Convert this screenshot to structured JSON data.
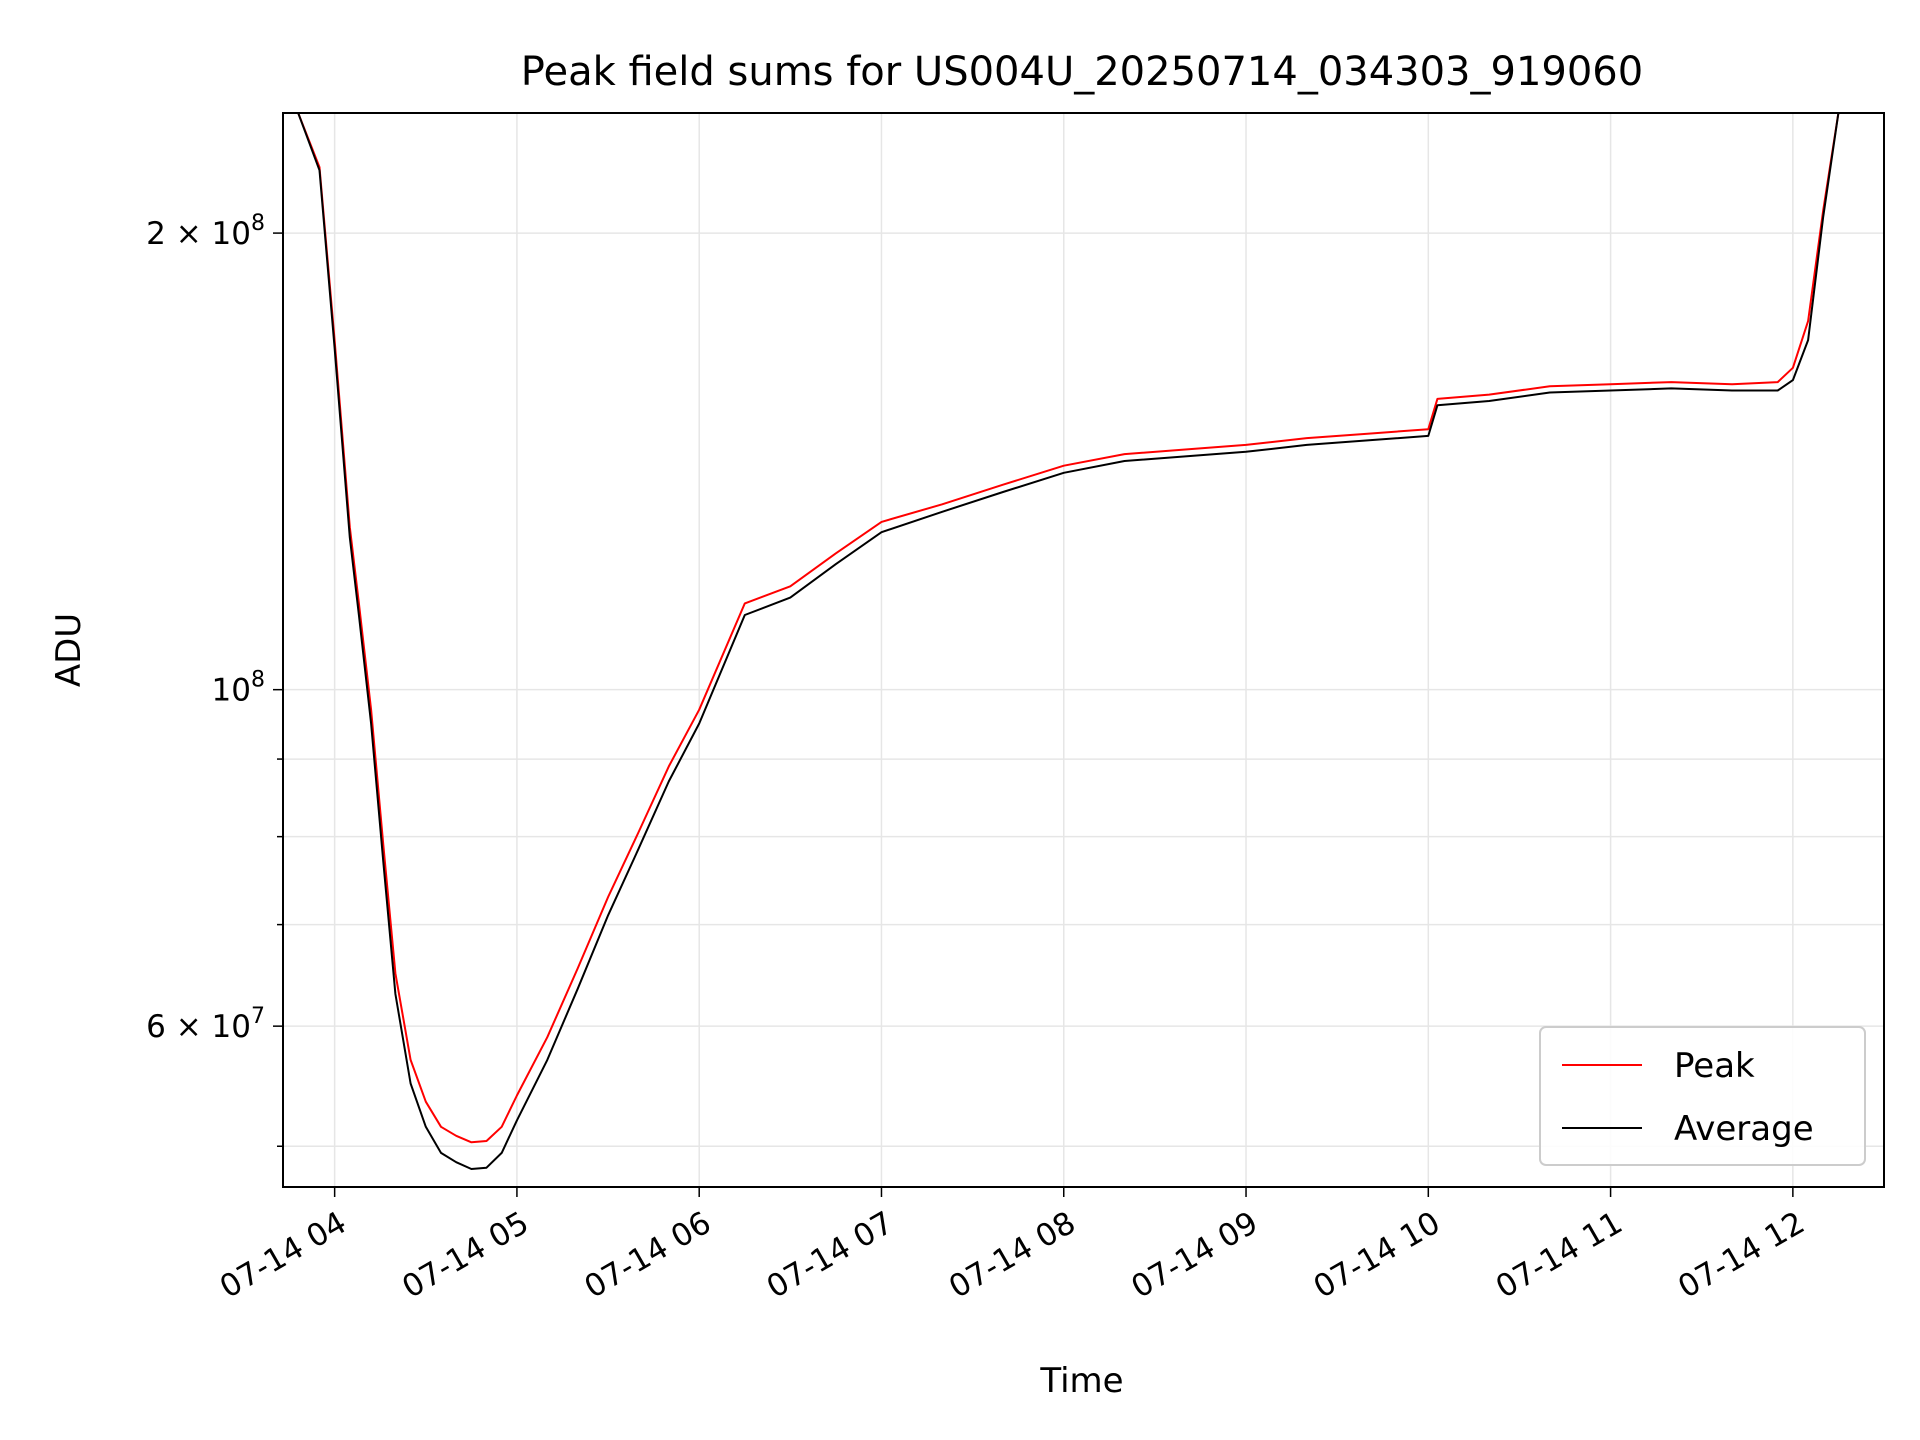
{
  "chart_data": {
    "type": "line",
    "title": "Peak field sums for US004U_20250714_034303_919060",
    "xlabel": "Time",
    "ylabel": "ADU",
    "x_ticks": [
      "07-14 04",
      "07-14 05",
      "07-14 06",
      "07-14 07",
      "07-14 08",
      "07-14 09",
      "07-14 10",
      "07-14 11",
      "07-14 12"
    ],
    "y_ticks": [
      {
        "value": 60000000,
        "mantissa": "6",
        "exponent": "7"
      },
      {
        "value": 100000000,
        "mantissa": "",
        "exponent": "8"
      },
      {
        "value": 200000000,
        "mantissa": "2",
        "exponent": "8"
      }
    ],
    "y_scale": "log",
    "ylim": [
      47000000,
      240000000
    ],
    "xlim": [
      "2025-07-14 03:43",
      "2025-07-14 12:30"
    ],
    "grid": true,
    "legend_position": "lower-right",
    "legend": [
      "Peak",
      "Average"
    ],
    "series": [
      {
        "name": "Average",
        "color": "#000000",
        "x": [
          "2025-07-14 03:48",
          "2025-07-14 03:55",
          "2025-07-14 04:00",
          "2025-07-14 04:05",
          "2025-07-14 04:08",
          "2025-07-14 04:12",
          "2025-07-14 04:16",
          "2025-07-14 04:20",
          "2025-07-14 04:25",
          "2025-07-14 04:30",
          "2025-07-14 04:35",
          "2025-07-14 04:40",
          "2025-07-14 04:45",
          "2025-07-14 04:50",
          "2025-07-14 04:55",
          "2025-07-14 05:00",
          "2025-07-14 05:10",
          "2025-07-14 05:20",
          "2025-07-14 05:30",
          "2025-07-14 05:40",
          "2025-07-14 05:50",
          "2025-07-14 06:00",
          "2025-07-14 06:15",
          "2025-07-14 06:30",
          "2025-07-14 06:45",
          "2025-07-14 07:00",
          "2025-07-14 07:20",
          "2025-07-14 07:40",
          "2025-07-14 08:00",
          "2025-07-14 08:20",
          "2025-07-14 08:40",
          "2025-07-14 09:00",
          "2025-07-14 09:20",
          "2025-07-14 09:40",
          "2025-07-14 10:00",
          "2025-07-14 10:03",
          "2025-07-14 10:20",
          "2025-07-14 10:40",
          "2025-07-14 11:00",
          "2025-07-14 11:20",
          "2025-07-14 11:40",
          "2025-07-14 11:55",
          "2025-07-14 12:00",
          "2025-07-14 12:05",
          "2025-07-14 12:10",
          "2025-07-14 12:15"
        ],
        "values": [
          240000000,
          220000000,
          168000000,
          126000000,
          112000000,
          95000000,
          77000000,
          63000000,
          55000000,
          51500000,
          49500000,
          48800000,
          48300000,
          48400000,
          49500000,
          52000000,
          57000000,
          63500000,
          71000000,
          78500000,
          87000000,
          95000000,
          112000000,
          115000000,
          121000000,
          127000000,
          131000000,
          135000000,
          139000000,
          141500000,
          142500000,
          143500000,
          145000000,
          146000000,
          147000000,
          154000000,
          155000000,
          157000000,
          157500000,
          158000000,
          157500000,
          157500000,
          160000000,
          170000000,
          205000000,
          240000000
        ]
      },
      {
        "name": "Peak",
        "color": "#ff0000",
        "x": [
          "2025-07-14 03:48",
          "2025-07-14 03:55",
          "2025-07-14 04:00",
          "2025-07-14 04:05",
          "2025-07-14 04:08",
          "2025-07-14 04:12",
          "2025-07-14 04:16",
          "2025-07-14 04:20",
          "2025-07-14 04:25",
          "2025-07-14 04:30",
          "2025-07-14 04:35",
          "2025-07-14 04:40",
          "2025-07-14 04:45",
          "2025-07-14 04:50",
          "2025-07-14 04:55",
          "2025-07-14 05:00",
          "2025-07-14 05:10",
          "2025-07-14 05:20",
          "2025-07-14 05:30",
          "2025-07-14 05:40",
          "2025-07-14 05:50",
          "2025-07-14 06:00",
          "2025-07-14 06:15",
          "2025-07-14 06:30",
          "2025-07-14 06:45",
          "2025-07-14 07:00",
          "2025-07-14 07:20",
          "2025-07-14 07:40",
          "2025-07-14 08:00",
          "2025-07-14 08:20",
          "2025-07-14 08:40",
          "2025-07-14 09:00",
          "2025-07-14 09:20",
          "2025-07-14 09:40",
          "2025-07-14 10:00",
          "2025-07-14 10:03",
          "2025-07-14 10:20",
          "2025-07-14 10:40",
          "2025-07-14 11:00",
          "2025-07-14 11:20",
          "2025-07-14 11:40",
          "2025-07-14 11:55",
          "2025-07-14 12:00",
          "2025-07-14 12:05",
          "2025-07-14 12:10",
          "2025-07-14 12:15"
        ],
        "values": [
          240000000,
          221000000,
          170000000,
          128000000,
          114000000,
          97000000,
          79000000,
          65000000,
          57000000,
          53500000,
          51500000,
          50800000,
          50300000,
          50400000,
          51500000,
          54000000,
          59000000,
          65500000,
          73000000,
          80500000,
          89000000,
          97000000,
          114000000,
          117000000,
          123000000,
          129000000,
          132500000,
          136500000,
          140500000,
          143000000,
          144000000,
          145000000,
          146500000,
          147500000,
          148500000,
          155500000,
          156500000,
          158500000,
          159000000,
          159500000,
          159000000,
          159500000,
          163000000,
          175000000,
          207000000,
          240000000
        ]
      }
    ]
  }
}
